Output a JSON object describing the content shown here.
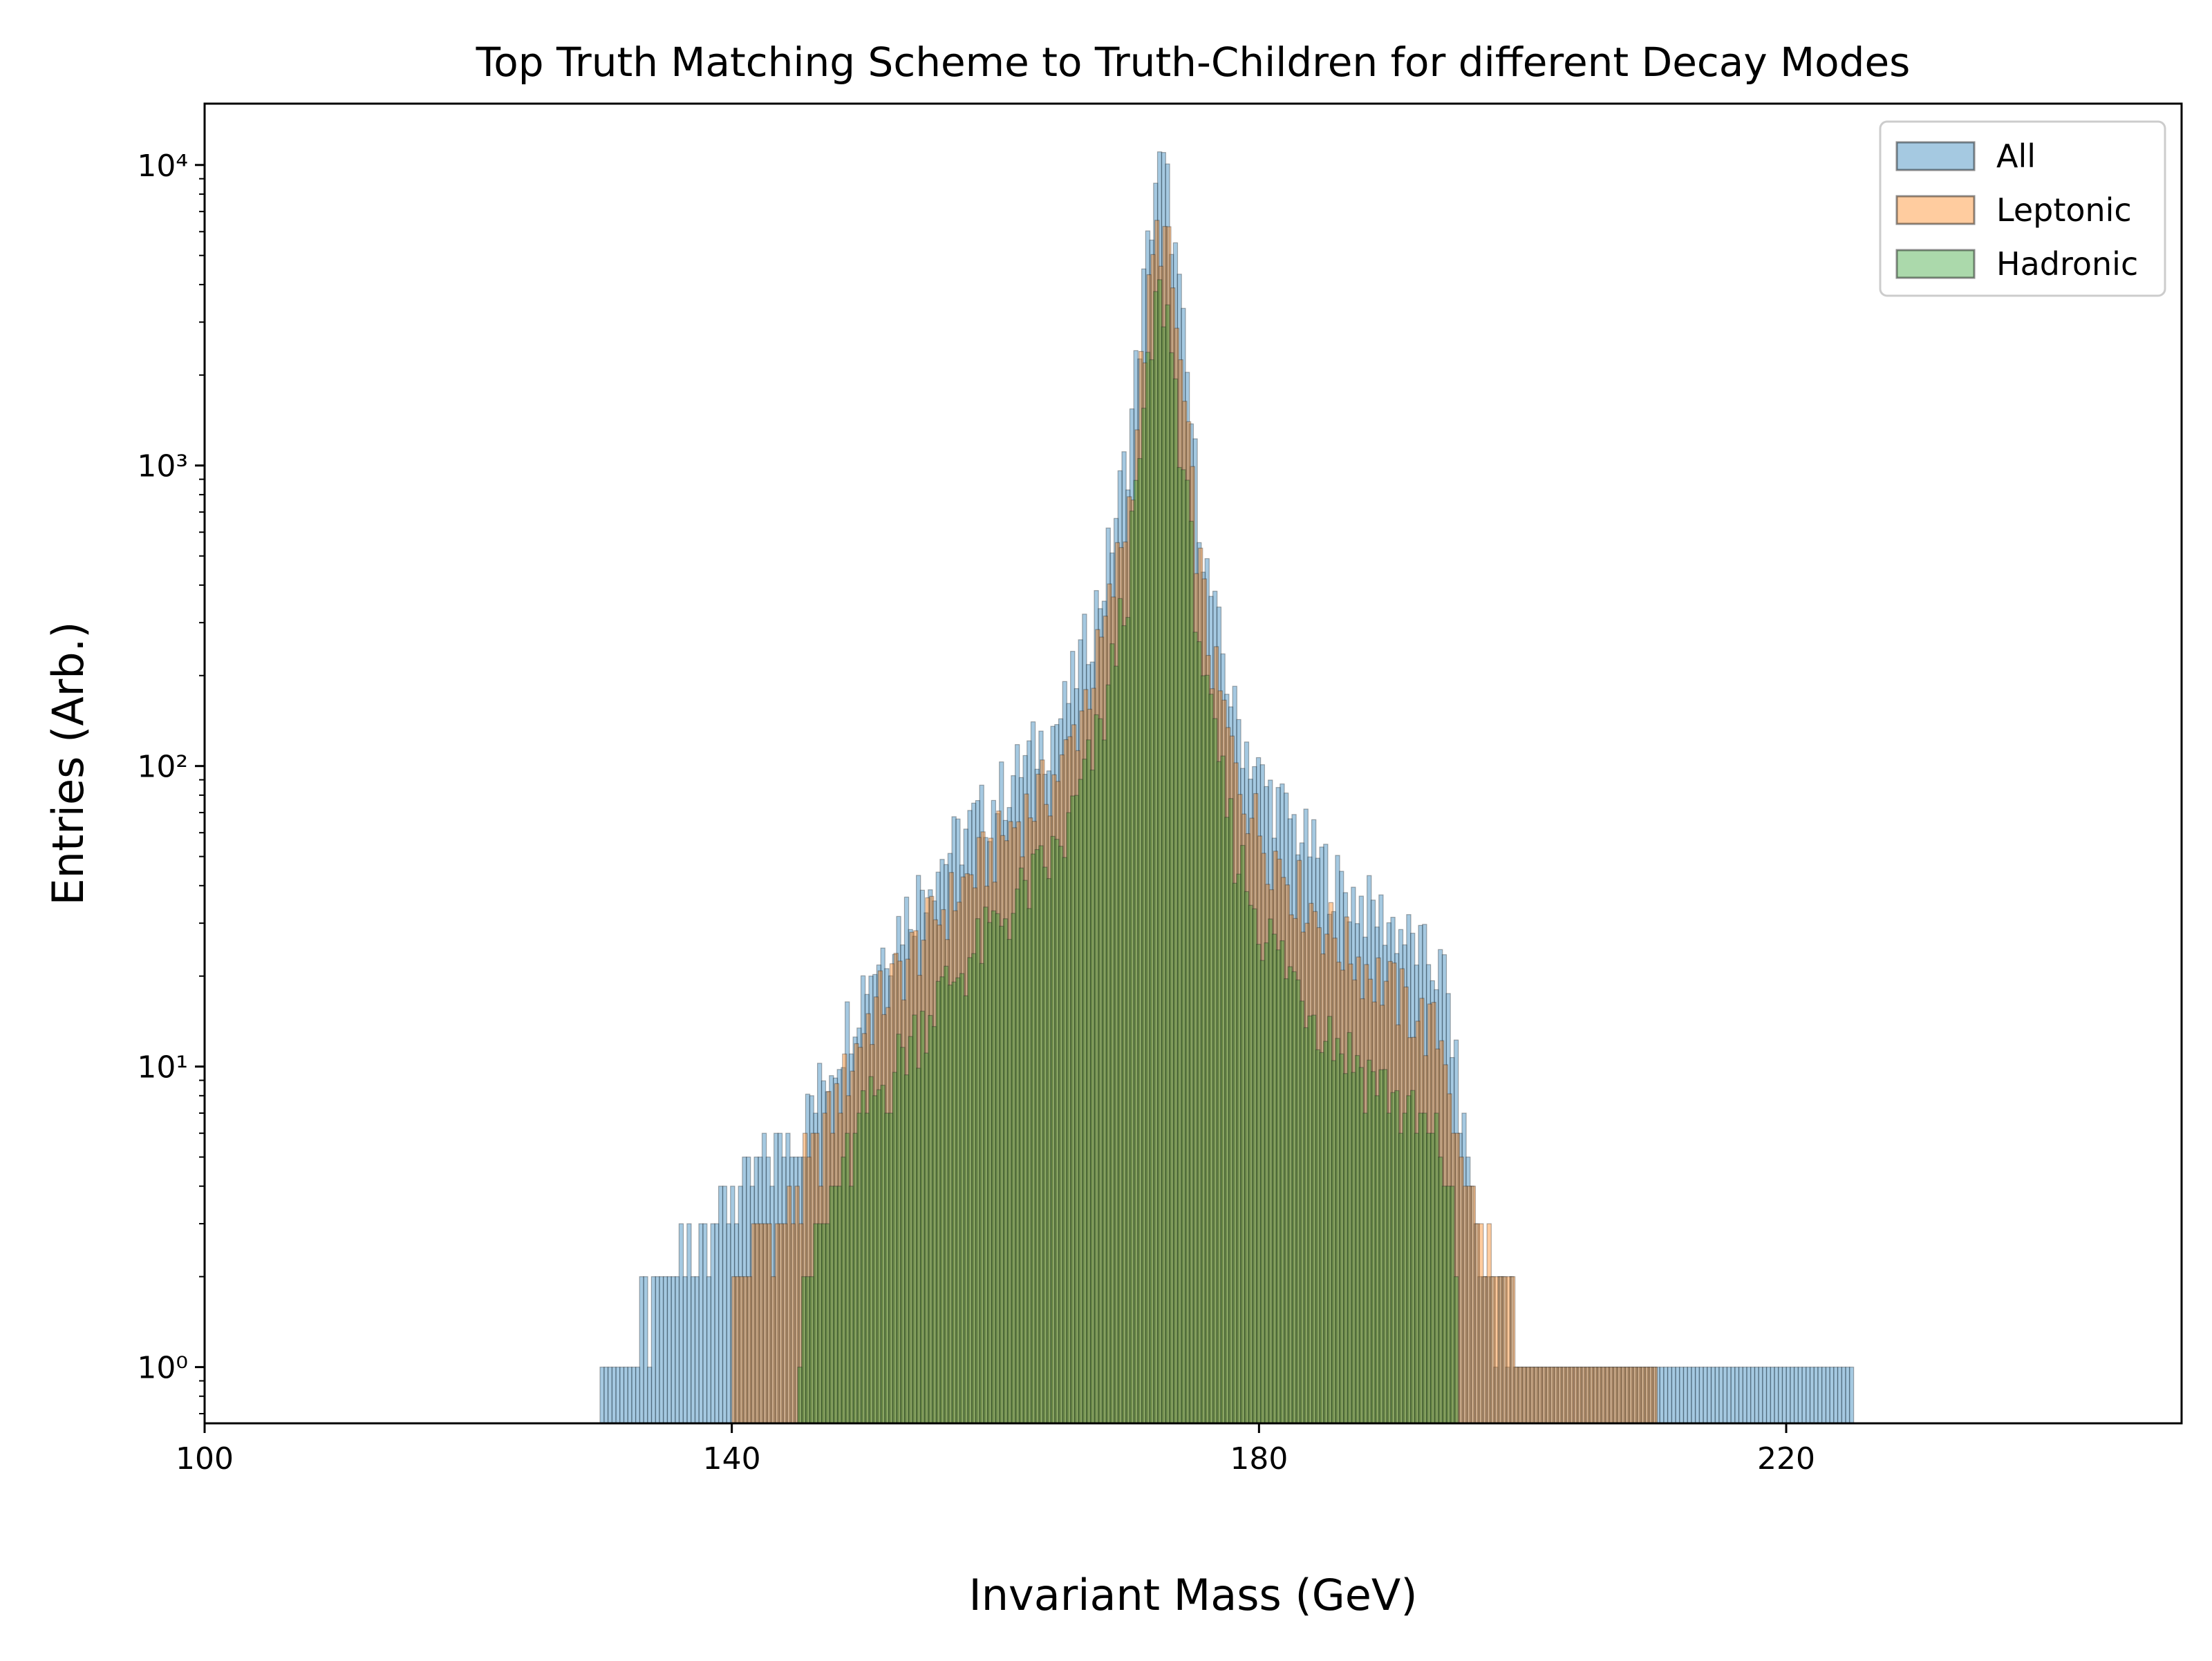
{
  "chart_data": {
    "type": "histogram",
    "title": "Top Truth Matching Scheme to Truth-Children for different Decay Modes",
    "xlabel": "Invariant Mass (GeV)",
    "ylabel": "Entries (Arb.)",
    "xlim": [
      100,
      250
    ],
    "ylim": [
      0.65,
      16000
    ],
    "yscale": "log",
    "x_ticks": [
      100,
      140,
      180,
      220
    ],
    "x_tick_labels": [
      "100",
      "140",
      "180",
      "220"
    ],
    "y_ticks": [
      1,
      10,
      100,
      1000,
      10000
    ],
    "y_tick_labels": [
      "10⁰",
      "10¹",
      "10²",
      "10³",
      "10⁴"
    ],
    "legend_position": "top-right",
    "grid": false,
    "peak_mass": 172.5,
    "series": [
      {
        "name": "All",
        "color": "#1f77b4",
        "points": [
          [
            130,
            1
          ],
          [
            135,
            2
          ],
          [
            140,
            4
          ],
          [
            145,
            6
          ],
          [
            148,
            12
          ],
          [
            150,
            20
          ],
          [
            155,
            45
          ],
          [
            160,
            80
          ],
          [
            165,
            150
          ],
          [
            168,
            400
          ],
          [
            170,
            1200
          ],
          [
            171,
            3500
          ],
          [
            172,
            9000
          ],
          [
            172.5,
            10000
          ],
          [
            173,
            8000
          ],
          [
            174,
            3000
          ],
          [
            175,
            1000
          ],
          [
            176,
            400
          ],
          [
            178,
            150
          ],
          [
            180,
            90
          ],
          [
            183,
            60
          ],
          [
            186,
            40
          ],
          [
            190,
            30
          ],
          [
            194,
            20
          ],
          [
            195,
            8
          ],
          [
            197,
            2
          ],
          [
            200,
            1
          ],
          [
            205,
            1
          ],
          [
            210,
            1
          ],
          [
            218,
            1
          ],
          [
            225,
            1
          ]
        ]
      },
      {
        "name": "Leptonic",
        "color": "#ff7f0e",
        "points": [
          [
            140,
            2
          ],
          [
            145,
            4
          ],
          [
            148,
            8
          ],
          [
            150,
            14
          ],
          [
            155,
            30
          ],
          [
            160,
            55
          ],
          [
            165,
            100
          ],
          [
            168,
            260
          ],
          [
            170,
            750
          ],
          [
            171,
            2200
          ],
          [
            172,
            5600
          ],
          [
            172.5,
            6200
          ],
          [
            173,
            5000
          ],
          [
            174,
            1900
          ],
          [
            175,
            650
          ],
          [
            176,
            260
          ],
          [
            178,
            100
          ],
          [
            180,
            60
          ],
          [
            183,
            38
          ],
          [
            186,
            26
          ],
          [
            190,
            18
          ],
          [
            194,
            12
          ],
          [
            195,
            5
          ],
          [
            200,
            1
          ],
          [
            210,
            1
          ]
        ]
      },
      {
        "name": "Hadronic",
        "color": "#2ca02c",
        "points": [
          [
            145,
            2
          ],
          [
            148,
            4
          ],
          [
            150,
            7
          ],
          [
            155,
            16
          ],
          [
            160,
            30
          ],
          [
            165,
            55
          ],
          [
            168,
            140
          ],
          [
            170,
            450
          ],
          [
            171,
            1300
          ],
          [
            172,
            3300
          ],
          [
            172.5,
            3800
          ],
          [
            173,
            3000
          ],
          [
            174,
            1100
          ],
          [
            175,
            380
          ],
          [
            176,
            150
          ],
          [
            178,
            55
          ],
          [
            180,
            30
          ],
          [
            183,
            18
          ],
          [
            186,
            12
          ],
          [
            190,
            8
          ],
          [
            194,
            5
          ],
          [
            195,
            2
          ]
        ]
      }
    ]
  }
}
